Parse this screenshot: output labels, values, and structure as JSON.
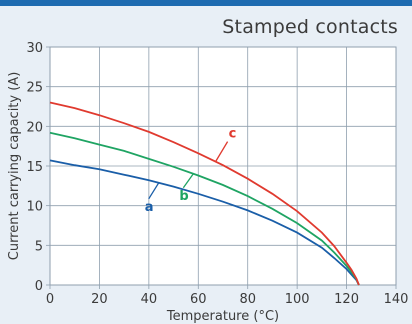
{
  "colors": {
    "background": "#e8eff6",
    "topbar": "#1e6bb0",
    "grid": "#8f9fae",
    "plot_bg": "#ffffff"
  },
  "chart_data": {
    "type": "line",
    "title": "Stamped contacts",
    "xlabel": "Temperature (°C)",
    "ylabel": "Current carrying capacity (A)",
    "xlim": [
      0,
      140
    ],
    "ylim": [
      0,
      30
    ],
    "x_ticks": [
      "0",
      "20",
      "40",
      "60",
      "80",
      "100",
      "120",
      "140"
    ],
    "y_ticks": [
      "0",
      "5",
      "10",
      "15",
      "20",
      "25",
      "30"
    ],
    "grid": true,
    "legend": "none",
    "series": [
      {
        "name": "a",
        "color": "#1a5ea8",
        "x": [
          0,
          10,
          20,
          30,
          40,
          50,
          60,
          70,
          80,
          90,
          100,
          110,
          115,
          120,
          122,
          124,
          125
        ],
        "y": [
          15.7,
          15.1,
          14.6,
          13.9,
          13.2,
          12.4,
          11.5,
          10.5,
          9.4,
          8.1,
          6.6,
          4.7,
          3.4,
          2.0,
          1.3,
          0.6,
          0
        ]
      },
      {
        "name": "b",
        "color": "#1fa463",
        "x": [
          0,
          10,
          20,
          30,
          40,
          50,
          60,
          70,
          80,
          90,
          100,
          110,
          115,
          120,
          122,
          124,
          125
        ],
        "y": [
          19.2,
          18.5,
          17.7,
          16.9,
          15.9,
          14.9,
          13.8,
          12.6,
          11.2,
          9.6,
          7.8,
          5.6,
          4.1,
          2.4,
          1.6,
          0.7,
          0
        ]
      },
      {
        "name": "c",
        "color": "#e03a2f",
        "x": [
          0,
          10,
          20,
          30,
          40,
          50,
          60,
          70,
          80,
          90,
          100,
          110,
          115,
          120,
          122,
          124,
          125
        ],
        "y": [
          23.0,
          22.3,
          21.4,
          20.4,
          19.3,
          18.0,
          16.6,
          15.1,
          13.4,
          11.5,
          9.3,
          6.6,
          4.9,
          2.8,
          1.9,
          0.8,
          0
        ]
      }
    ],
    "annotations": [
      {
        "text": "a",
        "series": "a"
      },
      {
        "text": "b",
        "series": "b"
      },
      {
        "text": "c",
        "series": "c"
      }
    ]
  }
}
